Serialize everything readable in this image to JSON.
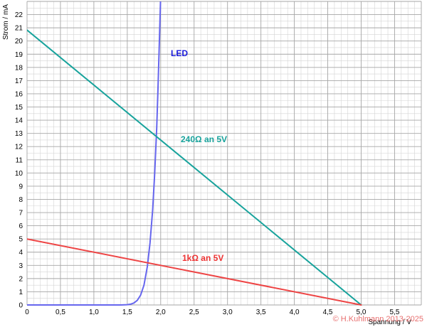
{
  "chart_data": {
    "type": "line",
    "title": "",
    "xlabel": "Spannung / V",
    "ylabel": "Strom / mA",
    "xlim": [
      0,
      5.9
    ],
    "ylim": [
      0,
      23
    ],
    "grid": true,
    "x_ticks": [
      0,
      0.5,
      1.0,
      1.5,
      2.0,
      2.5,
      3.0,
      3.5,
      4.0,
      4.5,
      5.0,
      5.5
    ],
    "x_tick_labels": [
      "0",
      "0,5",
      "1,0",
      "1,5",
      "2,0",
      "2,5",
      "3,0",
      "3,5",
      "4,0",
      "4,5",
      "5,0",
      "5,5"
    ],
    "y_ticks": [
      0,
      1,
      2,
      3,
      4,
      5,
      6,
      7,
      8,
      9,
      10,
      11,
      12,
      13,
      14,
      15,
      16,
      17,
      18,
      19,
      20,
      21,
      22
    ],
    "y_tick_labels": [
      "0",
      "1",
      "2",
      "3",
      "4",
      "5",
      "6",
      "7",
      "8",
      "9",
      "10",
      "11",
      "12",
      "13",
      "14",
      "15",
      "16",
      "17",
      "18",
      "19",
      "20",
      "21",
      "22"
    ],
    "series": [
      {
        "name": "LED",
        "color": "#6666ee",
        "label_color": "#1a1adb",
        "x": [
          0,
          1.4,
          1.5,
          1.55,
          1.6,
          1.65,
          1.7,
          1.75,
          1.8,
          1.84,
          1.88,
          1.91,
          1.94,
          1.96,
          1.98,
          2.0
        ],
        "y": [
          0,
          0,
          0.02,
          0.06,
          0.15,
          0.35,
          0.75,
          1.5,
          2.9,
          4.7,
          7.2,
          9.9,
          13.4,
          16.4,
          19.9,
          23.5
        ]
      },
      {
        "name": "240Ω an 5V",
        "color": "#18a39c",
        "label_color": "#18a39c",
        "x": [
          0,
          5.0
        ],
        "y": [
          20.83,
          0
        ]
      },
      {
        "name": "1kΩ an 5V",
        "color": "#ee4444",
        "label_color": "#ee3333",
        "x": [
          0,
          5.0
        ],
        "y": [
          5,
          0
        ]
      }
    ],
    "copyright": "© H.Kuhlmann 2013-2025",
    "copyright_color": "#e86f6f"
  }
}
